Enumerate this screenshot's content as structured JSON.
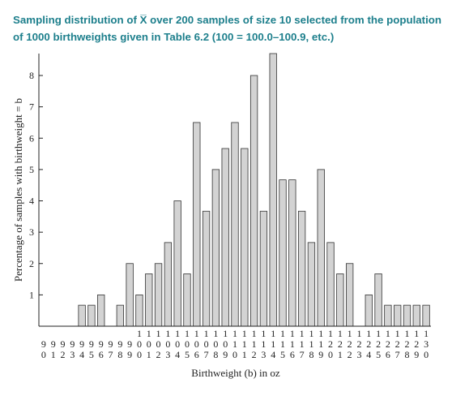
{
  "title_lines": [
    "Sampling distribution of X̅ over 200 samples of size 10 selected from the population",
    "of 1000 birthweights given in Table 6.2 (100 = 100.0–100.9, etc.)"
  ],
  "chart_data": {
    "type": "bar",
    "title": "Sampling distribution of X̅ over 200 samples of size 10 selected from the population of 1000 birthweights given in Table 6.2 (100 = 100.0–100.9, etc.)",
    "xlabel": "Birthweight (b) in oz",
    "ylabel": "Percentage of samples with birthweight = b",
    "ylim": [
      0,
      8.7
    ],
    "yticks": [
      1,
      2,
      3,
      4,
      5,
      6,
      7,
      8
    ],
    "x": [
      90,
      91,
      92,
      93,
      94,
      95,
      96,
      97,
      98,
      99,
      100,
      101,
      102,
      103,
      104,
      105,
      106,
      107,
      108,
      109,
      110,
      111,
      112,
      113,
      114,
      115,
      116,
      117,
      118,
      119,
      120,
      121,
      122,
      123,
      124,
      125,
      126,
      127,
      128,
      129,
      130
    ],
    "values": [
      0,
      0,
      0,
      0,
      0.67,
      0.67,
      1.0,
      0,
      0.67,
      2.0,
      1.0,
      1.67,
      2.0,
      2.67,
      4.0,
      1.67,
      6.5,
      3.67,
      5.0,
      5.67,
      6.5,
      5.67,
      8.0,
      3.67,
      8.7,
      4.67,
      4.67,
      3.67,
      2.67,
      5.0,
      2.67,
      1.67,
      2.0,
      0,
      1.0,
      1.67,
      0.67,
      0.67,
      0.67,
      0.67,
      0.67
    ],
    "grid": false,
    "bar_color": "#d3d3d3",
    "bar_edge": "#333333"
  }
}
